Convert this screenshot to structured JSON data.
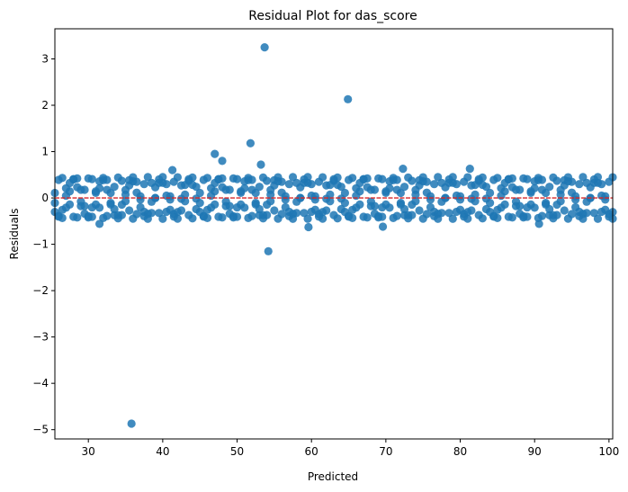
{
  "chart_data": {
    "type": "scatter",
    "title": "Residual Plot for das_score",
    "xlabel": "Predicted",
    "ylabel": "Residuals",
    "xlim": [
      25.5,
      100.5
    ],
    "ylim": [
      -5.2,
      3.65
    ],
    "xticks": [
      30,
      40,
      50,
      60,
      70,
      80,
      90,
      100
    ],
    "yticks": [
      -5,
      -4,
      -3,
      -2,
      -1,
      0,
      1,
      2,
      3
    ],
    "grid": false,
    "point_color": "#1f77b4",
    "reference_line": {
      "y": 0,
      "color": "#d62728",
      "style": "dashed"
    },
    "band_pattern": {
      "x_start": 25.5,
      "x_end": 100.5,
      "step": 0.5,
      "period": 3.9,
      "amplitude": 0.45
    },
    "outliers": [
      {
        "x": 35.8,
        "y": -4.87
      },
      {
        "x": 53.7,
        "y": 3.25
      },
      {
        "x": 64.9,
        "y": 2.13
      },
      {
        "x": 51.8,
        "y": 1.18
      },
      {
        "x": 47.0,
        "y": 0.95
      },
      {
        "x": 48.0,
        "y": 0.8
      },
      {
        "x": 53.2,
        "y": 0.72
      },
      {
        "x": 72.3,
        "y": 0.63
      },
      {
        "x": 81.3,
        "y": 0.63
      },
      {
        "x": 41.3,
        "y": 0.6
      },
      {
        "x": 54.2,
        "y": -1.15
      },
      {
        "x": 59.6,
        "y": -0.63
      },
      {
        "x": 69.6,
        "y": -0.62
      },
      {
        "x": 31.5,
        "y": -0.56
      },
      {
        "x": 90.6,
        "y": -0.56
      }
    ]
  }
}
